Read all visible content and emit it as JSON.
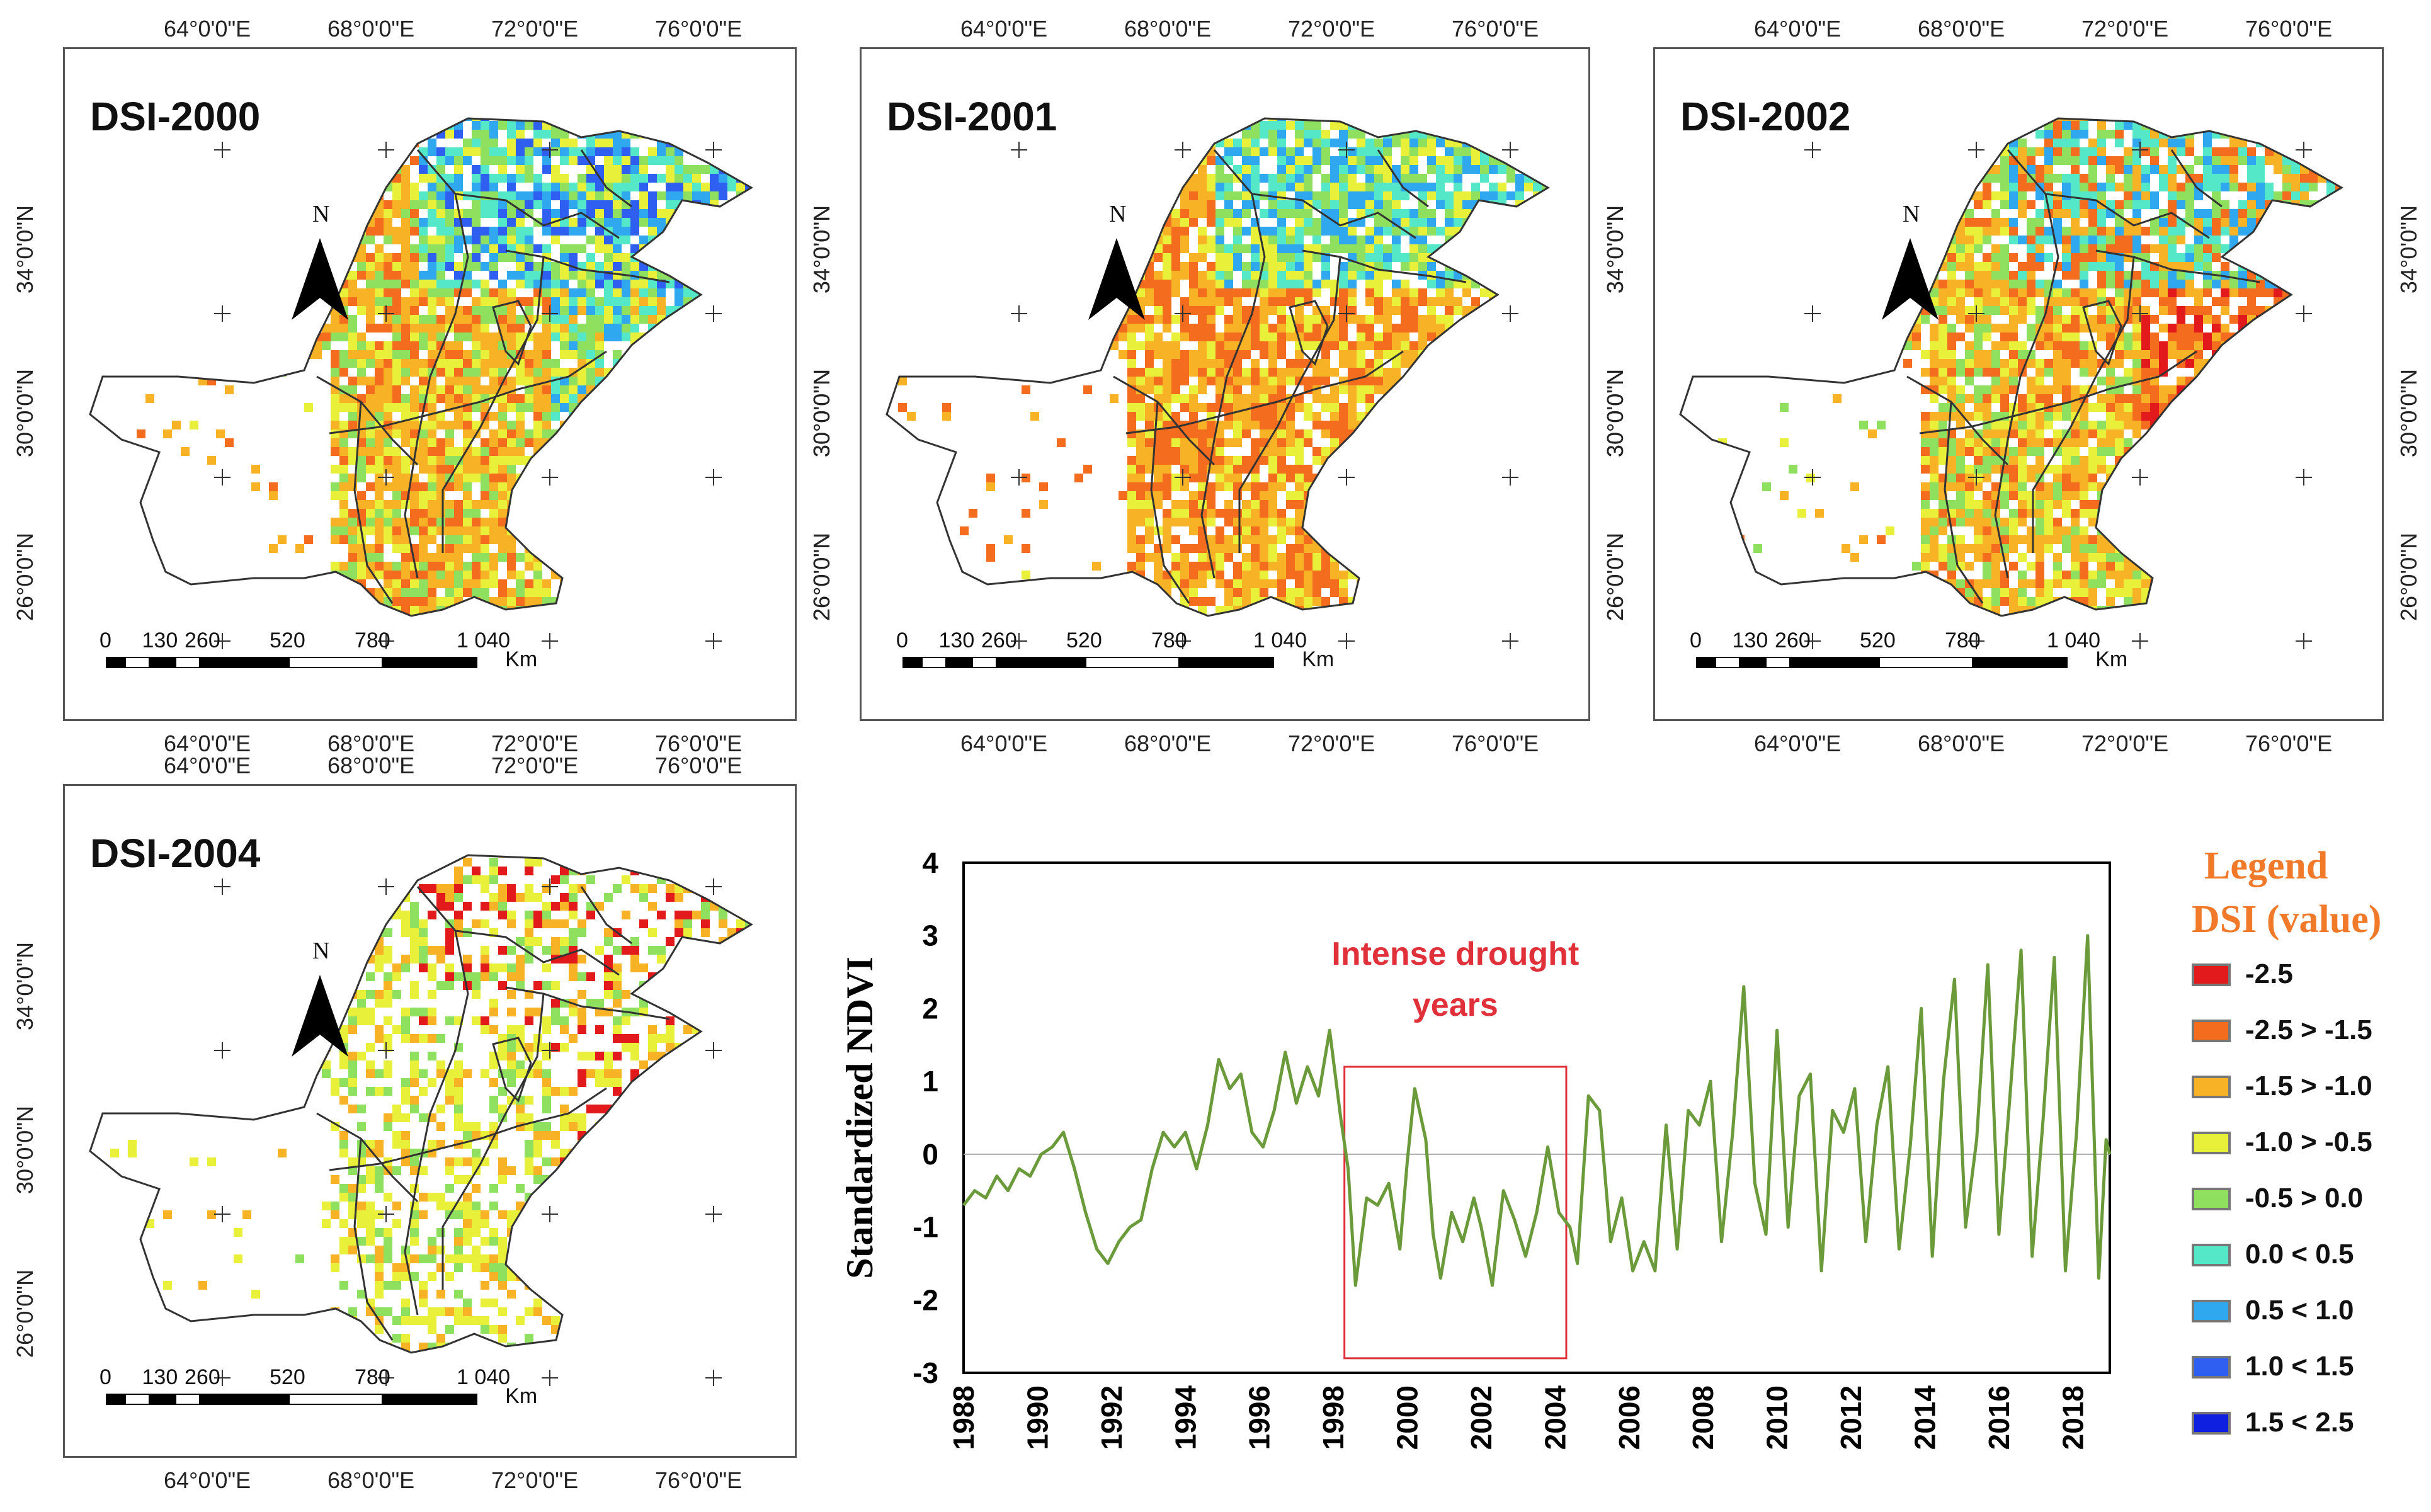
{
  "maps": [
    {
      "title": "DSI-2000",
      "lon_labels": [
        "64°0'0\"E",
        "68°0'0\"E",
        "72°0'0\"E",
        "76°0'0\"E"
      ],
      "lat_labels": [
        "34°0'0\"N",
        "30°0'0\"N",
        "26°0'0\"N"
      ],
      "scale_labels": [
        "0",
        "130",
        "260",
        "520",
        "780",
        "1 040",
        "Km"
      ],
      "north_label": "N"
    },
    {
      "title": "DSI-2001",
      "lon_labels": [
        "64°0'0\"E",
        "68°0'0\"E",
        "72°0'0\"E",
        "76°0'0\"E"
      ],
      "lat_labels": [
        "34°0'0\"N",
        "30°0'0\"N",
        "26°0'0\"N"
      ],
      "scale_labels": [
        "0",
        "130",
        "260",
        "520",
        "780",
        "1 040",
        "Km"
      ],
      "north_label": "N"
    },
    {
      "title": "DSI-2002",
      "lon_labels": [
        "64°0'0\"E",
        "68°0'0\"E",
        "72°0'0\"E",
        "76°0'0\"E"
      ],
      "lat_labels": [
        "34°0'0\"N",
        "30°0'0\"N",
        "26°0'0\"N"
      ],
      "scale_labels": [
        "0",
        "130",
        "260",
        "520",
        "780",
        "1 040",
        "Km"
      ],
      "north_label": "N"
    },
    {
      "title": "DSI-2004",
      "lon_labels": [
        "64°0'0\"E",
        "68°0'0\"E",
        "72°0'0\"E",
        "76°0'0\"E"
      ],
      "lat_labels": [
        "34°0'0\"N",
        "30°0'0\"N",
        "26°0'0\"N"
      ],
      "scale_labels": [
        "0",
        "130",
        "260",
        "520",
        "780",
        "1 040",
        "Km"
      ],
      "north_label": "N"
    }
  ],
  "chart_data": {
    "type": "line",
    "ylabel": "Standardized NDVI",
    "xlabel": "",
    "ylim": [
      -3,
      4
    ],
    "xlim": [
      1988,
      2019
    ],
    "yticks": [
      4,
      3,
      2,
      1,
      0,
      -1,
      -2,
      -3
    ],
    "xticks": [
      1988,
      1990,
      1992,
      1994,
      1996,
      1998,
      2000,
      2002,
      2004,
      2006,
      2008,
      2010,
      2012,
      2014,
      2016,
      2018
    ],
    "annotation": {
      "text_line1": "Intense drought",
      "text_line2": "years",
      "x_range": [
        1998.3,
        2004.3
      ],
      "y_range": [
        -2.8,
        1.2
      ]
    },
    "series": [
      {
        "name": "Standardized NDVI",
        "color": "#6a9a3a",
        "points": [
          [
            1988.0,
            -0.7
          ],
          [
            1988.3,
            -0.5
          ],
          [
            1988.6,
            -0.6
          ],
          [
            1988.9,
            -0.3
          ],
          [
            1989.2,
            -0.5
          ],
          [
            1989.5,
            -0.2
          ],
          [
            1989.8,
            -0.3
          ],
          [
            1990.1,
            0.0
          ],
          [
            1990.4,
            0.1
          ],
          [
            1990.7,
            0.3
          ],
          [
            1991.0,
            -0.2
          ],
          [
            1991.3,
            -0.8
          ],
          [
            1991.6,
            -1.3
          ],
          [
            1991.9,
            -1.5
          ],
          [
            1992.2,
            -1.2
          ],
          [
            1992.5,
            -1.0
          ],
          [
            1992.8,
            -0.9
          ],
          [
            1993.1,
            -0.2
          ],
          [
            1993.4,
            0.3
          ],
          [
            1993.7,
            0.1
          ],
          [
            1994.0,
            0.3
          ],
          [
            1994.3,
            -0.2
          ],
          [
            1994.6,
            0.4
          ],
          [
            1994.9,
            1.3
          ],
          [
            1995.2,
            0.9
          ],
          [
            1995.5,
            1.1
          ],
          [
            1995.8,
            0.3
          ],
          [
            1996.1,
            0.1
          ],
          [
            1996.4,
            0.6
          ],
          [
            1996.7,
            1.4
          ],
          [
            1997.0,
            0.7
          ],
          [
            1997.3,
            1.2
          ],
          [
            1997.6,
            0.8
          ],
          [
            1997.9,
            1.7
          ],
          [
            1998.2,
            0.5
          ],
          [
            1998.4,
            -0.2
          ],
          [
            1998.6,
            -1.8
          ],
          [
            1998.9,
            -0.6
          ],
          [
            1999.2,
            -0.7
          ],
          [
            1999.5,
            -0.4
          ],
          [
            1999.8,
            -1.3
          ],
          [
            2000.0,
            -0.1
          ],
          [
            2000.2,
            0.9
          ],
          [
            2000.5,
            0.2
          ],
          [
            2000.7,
            -1.1
          ],
          [
            2000.9,
            -1.7
          ],
          [
            2001.2,
            -0.8
          ],
          [
            2001.5,
            -1.2
          ],
          [
            2001.8,
            -0.6
          ],
          [
            2002.0,
            -1.0
          ],
          [
            2002.3,
            -1.8
          ],
          [
            2002.6,
            -0.5
          ],
          [
            2002.9,
            -0.9
          ],
          [
            2003.2,
            -1.4
          ],
          [
            2003.5,
            -0.8
          ],
          [
            2003.8,
            0.1
          ],
          [
            2004.1,
            -0.8
          ],
          [
            2004.4,
            -1.0
          ],
          [
            2004.6,
            -1.5
          ],
          [
            2004.9,
            0.8
          ],
          [
            2005.2,
            0.6
          ],
          [
            2005.5,
            -1.2
          ],
          [
            2005.8,
            -0.6
          ],
          [
            2006.1,
            -1.6
          ],
          [
            2006.4,
            -1.2
          ],
          [
            2006.7,
            -1.6
          ],
          [
            2007.0,
            0.4
          ],
          [
            2007.3,
            -1.3
          ],
          [
            2007.6,
            0.6
          ],
          [
            2007.9,
            0.4
          ],
          [
            2008.2,
            1.0
          ],
          [
            2008.5,
            -1.2
          ],
          [
            2008.8,
            0.3
          ],
          [
            2009.1,
            2.3
          ],
          [
            2009.4,
            -0.4
          ],
          [
            2009.7,
            -1.1
          ],
          [
            2010.0,
            1.7
          ],
          [
            2010.3,
            -1.0
          ],
          [
            2010.6,
            0.8
          ],
          [
            2010.9,
            1.1
          ],
          [
            2011.2,
            -1.6
          ],
          [
            2011.5,
            0.6
          ],
          [
            2011.8,
            0.3
          ],
          [
            2012.1,
            0.9
          ],
          [
            2012.4,
            -1.2
          ],
          [
            2012.7,
            0.4
          ],
          [
            2013.0,
            1.2
          ],
          [
            2013.3,
            -1.3
          ],
          [
            2013.6,
            0.1
          ],
          [
            2013.9,
            2.0
          ],
          [
            2014.2,
            -1.4
          ],
          [
            2014.5,
            1.0
          ],
          [
            2014.8,
            2.4
          ],
          [
            2015.1,
            -1.0
          ],
          [
            2015.4,
            0.2
          ],
          [
            2015.7,
            2.6
          ],
          [
            2016.0,
            -1.1
          ],
          [
            2016.3,
            0.8
          ],
          [
            2016.6,
            2.8
          ],
          [
            2016.9,
            -1.4
          ],
          [
            2017.2,
            0.5
          ],
          [
            2017.5,
            2.7
          ],
          [
            2017.8,
            -1.6
          ],
          [
            2018.1,
            0.3
          ],
          [
            2018.4,
            3.0
          ],
          [
            2018.7,
            -1.7
          ],
          [
            2018.9,
            0.2
          ],
          [
            2019.0,
            0.0
          ]
        ]
      }
    ],
    "legend": {
      "title_line1": "Legend",
      "title_line2": "DSI (value)",
      "items": [
        {
          "label": "-2.5",
          "color": "#e31a1c"
        },
        {
          "label": "-2.5 > -1.5",
          "color": "#f46d1f"
        },
        {
          "label": "-1.5 > -1.0",
          "color": "#f7b225"
        },
        {
          "label": "-1.0 > -0.5",
          "color": "#e8f03a"
        },
        {
          "label": "-0.5 >  0.0",
          "color": "#90e060"
        },
        {
          "label": "0.0 <  0.5",
          "color": "#55e8c8"
        },
        {
          "label": "0.5 <  1.0",
          "color": "#30a8f0"
        },
        {
          "label": "1.0 <  1.5",
          "color": "#2f5ff0"
        },
        {
          "label": "1.5 <  2.5",
          "color": "#1020e0"
        }
      ]
    }
  },
  "colors": {
    "map_border": "#555555",
    "country_outline": "#333333",
    "chart_line": "#6a9a3a",
    "annotation": "#e0303a",
    "legend_title": "#f07a2a"
  }
}
